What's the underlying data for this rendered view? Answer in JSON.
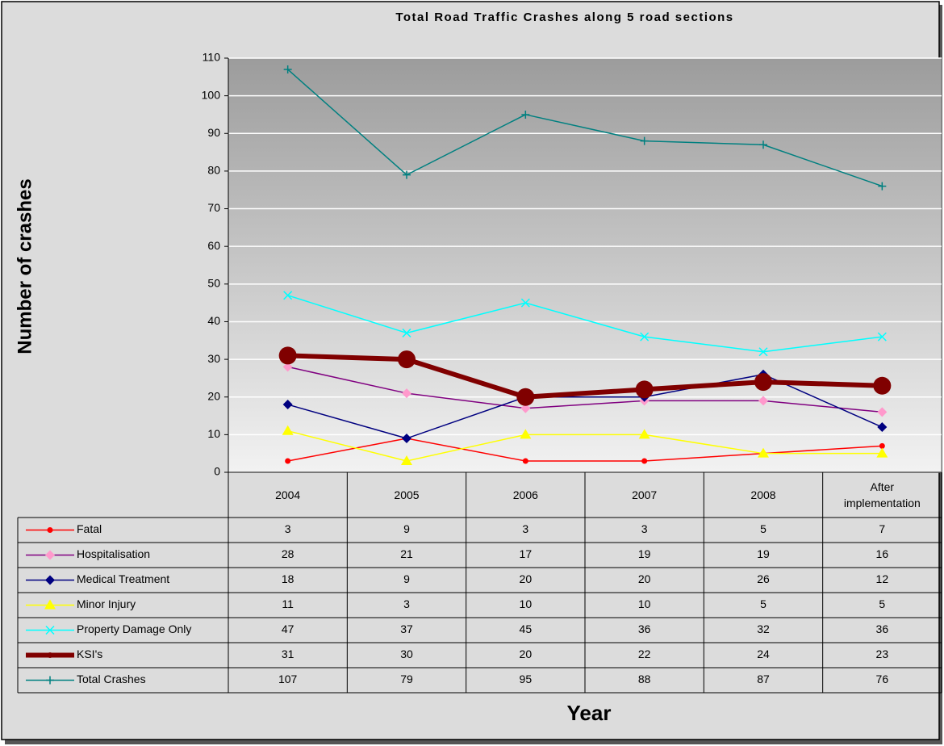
{
  "chart_data": {
    "type": "line",
    "title": "Total Road Traffic Crashes along 5 road sections",
    "y_label": "Number of crashes",
    "x_label": "Year",
    "categories": [
      "2004",
      "2005",
      "2006",
      "2007",
      "2008",
      "After implementation"
    ],
    "ylim": [
      0,
      110
    ],
    "yticks": [
      0,
      10,
      20,
      30,
      40,
      50,
      60,
      70,
      80,
      90,
      100,
      110
    ],
    "grid": true,
    "data_table": true,
    "series": [
      {
        "name": "Fatal",
        "color": "#ff0000",
        "marker": "circle",
        "marker_color": "#ff0000",
        "line_width": 1.5,
        "values": [
          3,
          9,
          3,
          3,
          5,
          7
        ]
      },
      {
        "name": "Hospitalisation",
        "color": "#800080",
        "marker": "diamond",
        "marker_color": "#ff99cc",
        "line_width": 1.5,
        "values": [
          28,
          21,
          17,
          19,
          19,
          16
        ]
      },
      {
        "name": "Medical Treatment",
        "color": "#000080",
        "marker": "diamond",
        "marker_color": "#000080",
        "line_width": 1.5,
        "values": [
          18,
          9,
          20,
          20,
          26,
          12
        ]
      },
      {
        "name": "Minor Injury",
        "color": "#ffff00",
        "marker": "triangle",
        "marker_color": "#ffff00",
        "line_width": 1.5,
        "values": [
          11,
          3,
          10,
          10,
          5,
          5
        ]
      },
      {
        "name": "Property Damage Only",
        "color": "#00ffff",
        "marker": "x",
        "marker_color": "#00ffff",
        "line_width": 1.5,
        "values": [
          47,
          37,
          45,
          36,
          32,
          36
        ]
      },
      {
        "name": "KSI's",
        "color": "#800000",
        "marker": "bigcircle",
        "marker_color": "#800000",
        "line_width": 6,
        "values": [
          31,
          30,
          20,
          22,
          24,
          23
        ]
      },
      {
        "name": "Total Crashes",
        "color": "#008080",
        "marker": "plus",
        "marker_color": "#008080",
        "line_width": 1.5,
        "values": [
          107,
          79,
          95,
          88,
          87,
          76
        ]
      }
    ]
  }
}
